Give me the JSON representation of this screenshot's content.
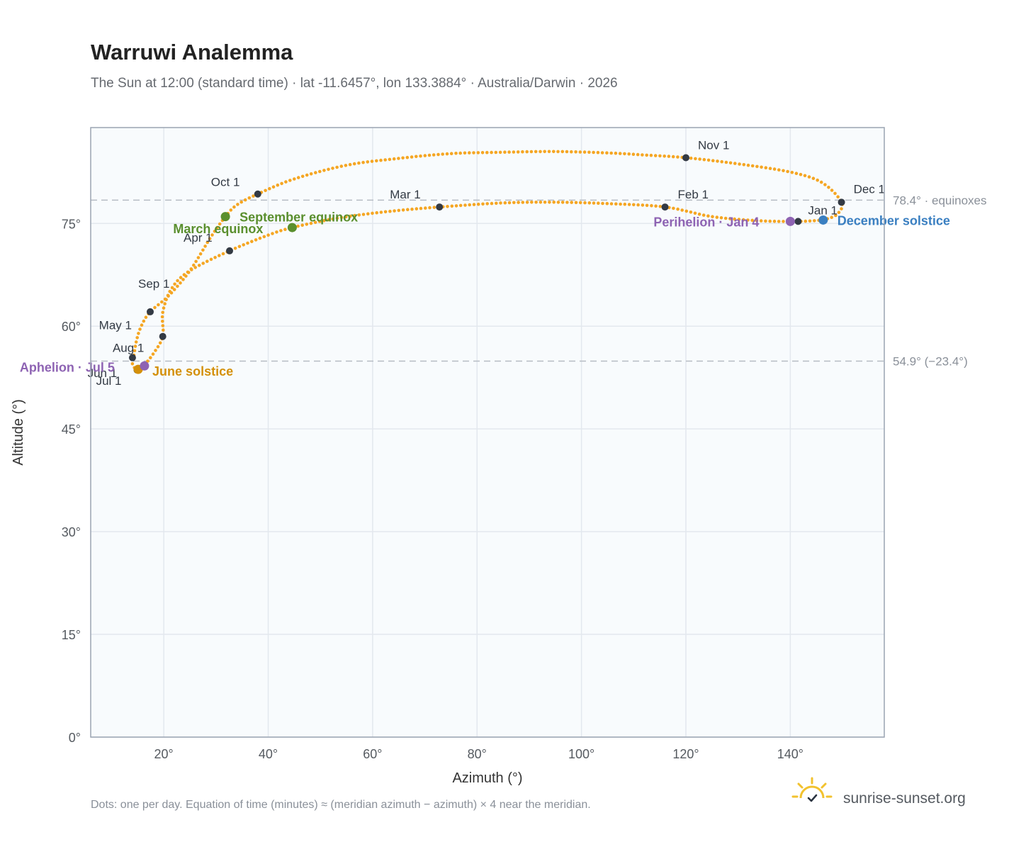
{
  "header": {
    "title": "Warruwi Analemma",
    "subtitle": "The Sun at 12:00 (standard time) · lat -11.6457°, lon 133.3884° · Australia/Darwin · 2026"
  },
  "footer": {
    "note": "Dots: one per day. Equation of time (minutes) ≈ (meridian azimuth − azimuth) × 4 near the meridian.",
    "brand": "sunrise-sunset.org",
    "brand_icon": "sun-logo-icon"
  },
  "colors": {
    "path": "#f5a623",
    "marker": "#333a44",
    "equinox": "#5a8f2e",
    "june_solstice": "#d4900a",
    "december_solstice": "#3a7fc1",
    "apsis": "#8e63b3",
    "plot_bg": "#f8fbfd",
    "grid": "#e3e8ee",
    "frame": "#9aa4b2",
    "ref_line": "#b6bcc4"
  },
  "chart_data": {
    "type": "scatter",
    "title": "Warruwi Analemma",
    "xlabel": "Azimuth (°)",
    "ylabel": "Altitude (°)",
    "xlim": [
      6,
      158
    ],
    "ylim": [
      0,
      89
    ],
    "x_ticks": [
      20,
      40,
      60,
      80,
      100,
      120,
      140
    ],
    "x_tick_labels": [
      "20°",
      "40°",
      "60°",
      "80°",
      "100°",
      "120°",
      "140°"
    ],
    "y_ticks": [
      0,
      15,
      30,
      45,
      60,
      75
    ],
    "y_tick_labels": [
      "0°",
      "15°",
      "30°",
      "45°",
      "60°",
      "75°"
    ],
    "grid": true,
    "reference_lines": [
      {
        "altitude": 78.4,
        "label": "78.4° · equinoxes"
      },
      {
        "altitude": 54.9,
        "label": "54.9° (−23.4°)"
      }
    ],
    "analemma_path": [
      [
        146.3,
        75.5
      ],
      [
        141.5,
        75.3
      ],
      [
        134.0,
        75.4
      ],
      [
        125.0,
        76.0
      ],
      [
        116.0,
        77.4
      ],
      [
        105.0,
        77.9
      ],
      [
        95.0,
        78.1
      ],
      [
        85.0,
        78.0
      ],
      [
        72.8,
        77.4
      ],
      [
        65.0,
        76.9
      ],
      [
        58.0,
        76.3
      ],
      [
        52.0,
        75.6
      ],
      [
        44.6,
        74.4
      ],
      [
        40.0,
        73.3
      ],
      [
        32.6,
        71.0
      ],
      [
        25.0,
        68.1
      ],
      [
        21.5,
        65.5
      ],
      [
        19.8,
        62.0
      ],
      [
        19.8,
        58.5
      ],
      [
        18.0,
        56.0
      ],
      [
        16.2,
        54.3
      ],
      [
        14.9,
        53.6
      ],
      [
        14.0,
        54.5
      ],
      [
        14.2,
        55.4
      ],
      [
        14.8,
        58.0
      ],
      [
        15.8,
        60.2
      ],
      [
        17.4,
        62.1
      ],
      [
        21.0,
        64.5
      ],
      [
        25.0,
        68.1
      ],
      [
        29.0,
        73.0
      ],
      [
        31.8,
        76.0
      ],
      [
        34.0,
        77.7
      ],
      [
        38.0,
        79.3
      ],
      [
        45.0,
        81.5
      ],
      [
        55.0,
        83.5
      ],
      [
        65.0,
        84.5
      ],
      [
        75.0,
        85.2
      ],
      [
        85.0,
        85.4
      ],
      [
        95.0,
        85.5
      ],
      [
        105.0,
        85.3
      ],
      [
        112.0,
        85.0
      ],
      [
        120.0,
        84.6
      ],
      [
        130.0,
        83.7
      ],
      [
        140.0,
        82.5
      ],
      [
        146.0,
        81.0
      ],
      [
        149.8,
        78.1
      ],
      [
        148.9,
        76.3
      ],
      [
        146.3,
        75.5
      ]
    ],
    "month_markers": [
      {
        "label": "Jan 1",
        "az": 141.5,
        "alt": 75.3
      },
      {
        "label": "Feb 1",
        "az": 116.0,
        "alt": 77.4
      },
      {
        "label": "Mar 1",
        "az": 72.8,
        "alt": 77.4
      },
      {
        "label": "Apr 1",
        "az": 32.6,
        "alt": 71.0
      },
      {
        "label": "May 1",
        "az": 19.8,
        "alt": 58.5
      },
      {
        "label": "Jun 1",
        "az": 14.9,
        "alt": 53.6
      },
      {
        "label": "Jul 1",
        "az": 14.9,
        "alt": 53.6
      },
      {
        "label": "Aug 1",
        "az": 14.0,
        "alt": 55.4
      },
      {
        "label": "Sep 1",
        "az": 17.4,
        "alt": 62.1
      },
      {
        "label": "Oct 1",
        "az": 38.0,
        "alt": 79.3
      },
      {
        "label": "Nov 1",
        "az": 120.0,
        "alt": 84.6
      },
      {
        "label": "Dec 1",
        "az": 149.8,
        "alt": 78.1
      }
    ],
    "events": [
      {
        "label": "March equinox",
        "az": 44.6,
        "alt": 74.4,
        "color_key": "equinox"
      },
      {
        "label": "September equinox",
        "az": 31.8,
        "alt": 76.0,
        "color_key": "equinox"
      },
      {
        "label": "June solstice",
        "az": 15.1,
        "alt": 53.7,
        "color_key": "june_solstice"
      },
      {
        "label": "December solstice",
        "az": 146.3,
        "alt": 75.5,
        "color_key": "december_solstice"
      },
      {
        "label": "Perihelion · Jan 4",
        "az": 140.0,
        "alt": 75.3,
        "color_key": "apsis"
      },
      {
        "label": "Aphelion · Jul 5",
        "az": 16.3,
        "alt": 54.2,
        "color_key": "apsis"
      }
    ]
  }
}
